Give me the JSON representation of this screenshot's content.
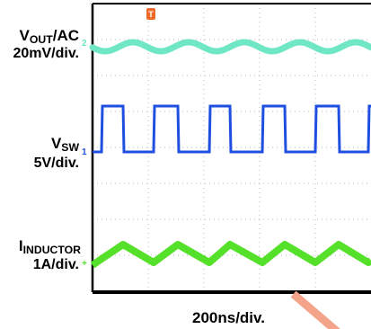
{
  "chart_data": {
    "type": "line",
    "xlabel": "200ns/div.",
    "series": [
      {
        "name_main": "V",
        "name_sub": "OUT",
        "name_suffix": "/AC",
        "scale": "20mV/div.",
        "marker": "2",
        "color": "#6FE7C4",
        "shape": "sine",
        "period_ns": 246
      },
      {
        "name_main": "V",
        "name_sub": "SW",
        "name_suffix": "",
        "scale": "5V/div.",
        "marker": "1",
        "color": "#1F4FE0",
        "shape": "pulse",
        "period_ns": 246,
        "amplitude_V": 12
      },
      {
        "name_main": "I",
        "name_sub": "INDUCTOR",
        "name_suffix": "",
        "scale": "1A/div.",
        "marker": "+",
        "color": "#55E02A",
        "shape": "triangle",
        "period_ns": 246,
        "ripple_A": 0.5
      }
    ],
    "trigger_marker": "T",
    "trigger_color": "#F06A2A",
    "grid": true
  },
  "watermark_color": "#F4A48A"
}
